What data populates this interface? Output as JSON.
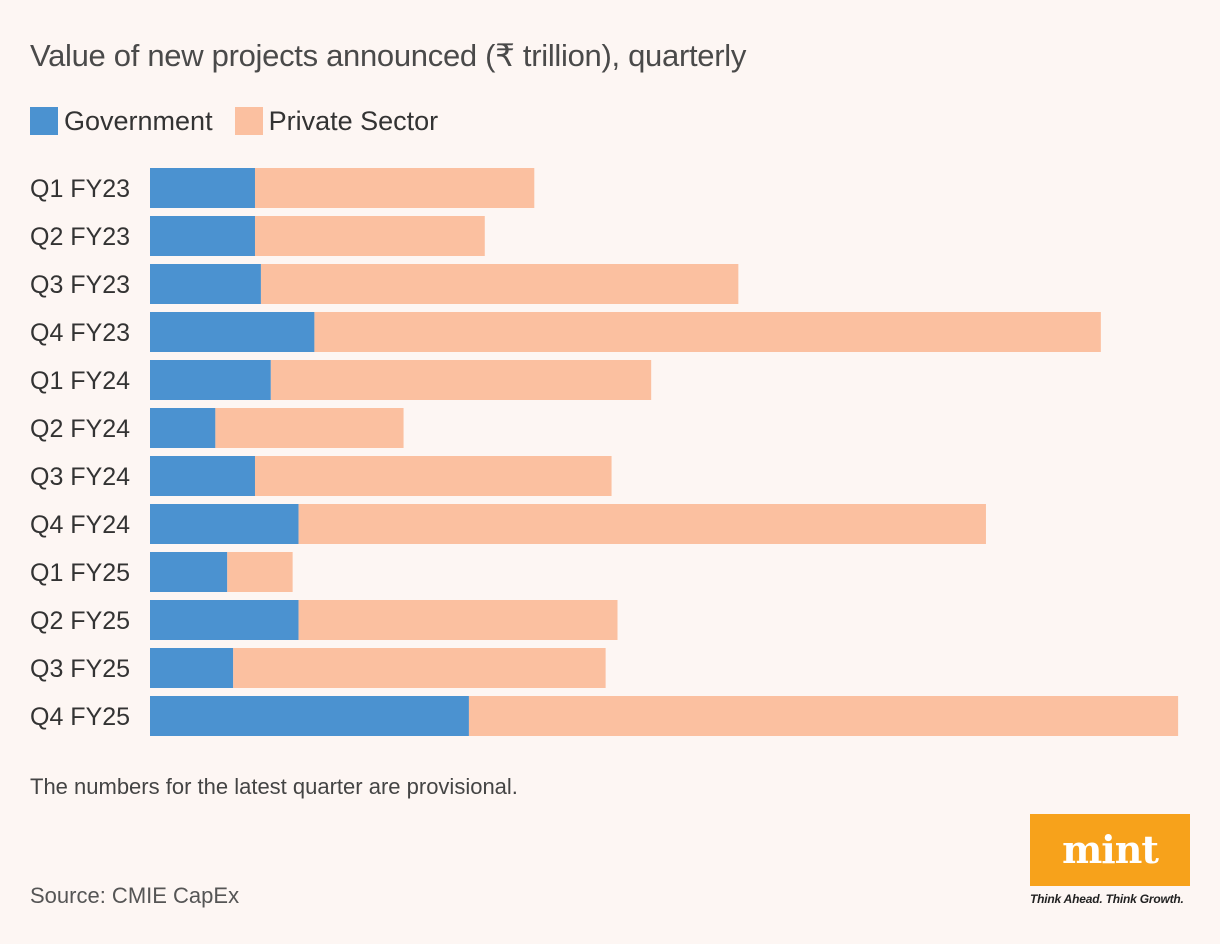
{
  "chart_data": {
    "type": "bar",
    "orientation": "horizontal",
    "stacked": true,
    "title": "Value of new projects announced (₹ trillion), quarterly",
    "xlabel": "",
    "ylabel": "",
    "grid": false,
    "legend_position": "top-left",
    "categories": [
      "Q1 FY23",
      "Q2 FY23",
      "Q3 FY23",
      "Q4 FY23",
      "Q1 FY24",
      "Q2 FY24",
      "Q3 FY24",
      "Q4 FY24",
      "Q1 FY25",
      "Q2 FY25",
      "Q3 FY25",
      "Q4 FY25"
    ],
    "series": [
      {
        "name": "Government",
        "color": "#4b92d0",
        "values": [
          1.06,
          1.06,
          1.12,
          1.66,
          1.22,
          0.66,
          1.06,
          1.5,
          0.78,
          1.5,
          0.84,
          3.22
        ]
      },
      {
        "name": "Private Sector",
        "color": "#fbc0a0",
        "values": [
          2.82,
          2.32,
          4.82,
          7.94,
          3.84,
          1.9,
          3.6,
          6.94,
          0.66,
          3.22,
          3.76,
          7.16
        ]
      }
    ],
    "xlim": [
      0,
      10.5
    ]
  },
  "note": "The numbers for the latest quarter are provisional.",
  "source": "Source: CMIE CapEx",
  "logo": {
    "word": "mint",
    "tagline": "Think Ahead. Think Growth."
  },
  "colors": {
    "background": "#fdf6f3",
    "logo_bg": "#f7a21b"
  }
}
